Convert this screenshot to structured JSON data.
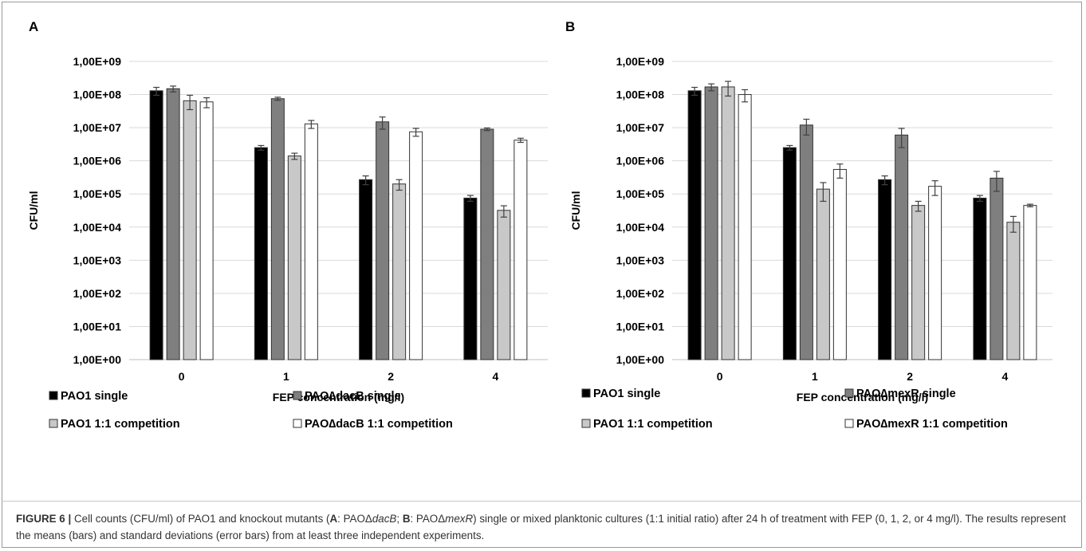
{
  "figure": {
    "caption": {
      "label": "FIGURE 6 |",
      "part1": " Cell counts (CFU/ml) of PAO1 and knockout mutants (",
      "a_letter": "A",
      "a_colon": ": PAO",
      "a_delta": "Δ",
      "a_gene": "dacB",
      "sep": "; ",
      "b_letter": "B",
      "b_colon": ": PAO",
      "b_delta": "Δ",
      "b_gene": "mexR",
      "part2": ") single or mixed planktonic cultures (1:1 initial ratio) after 24 h of treatment with FEP (0, 1, 2, or 4 mg/l). The results represent the means (bars) and standard deviations (error bars) from at least three independent experiments."
    }
  },
  "colors": {
    "series": [
      "#000000",
      "#7f7f7f",
      "#c8c8c8",
      "#ffffff"
    ],
    "stroke": "#333333",
    "grid": "#d9d9d9",
    "errorbar": "#404040"
  },
  "chart_data": [
    {
      "panel_label": "A",
      "type": "bar",
      "yscale": "log",
      "ylim": [
        1,
        1000000000
      ],
      "ylabel": "CFU/ml",
      "xlabel": "FEP concentration (mg/l)",
      "categories": [
        "0",
        "1",
        "2",
        "4"
      ],
      "yticks": [
        "1,00E+00",
        "1,00E+01",
        "1,00E+02",
        "1,00E+03",
        "1,00E+04",
        "1,00E+05",
        "1,00E+06",
        "1,00E+07",
        "1,00E+08",
        "1,00E+09"
      ],
      "grid": true,
      "legend_position": "bottom",
      "series": [
        {
          "name": "PAO1 single",
          "values": [
            130000000,
            2500000,
            270000,
            75000
          ],
          "errors": [
            35000000,
            400000,
            80000,
            15000
          ]
        },
        {
          "name": "PAO∆dacB single",
          "values": [
            150000000,
            75000000,
            15000000,
            9000000
          ],
          "errors": [
            30000000,
            8000000,
            6000000,
            800000
          ]
        },
        {
          "name": "PAO1 1:1 competition",
          "values": [
            65000000,
            1400000,
            200000,
            32000
          ],
          "errors": [
            30000000,
            300000,
            70000,
            12000
          ]
        },
        {
          "name": "PAO∆dacB 1:1 competition",
          "values": [
            60000000,
            13000000,
            7500000,
            4200000
          ],
          "errors": [
            20000000,
            3500000,
            2000000,
            600000
          ]
        }
      ]
    },
    {
      "panel_label": "B",
      "type": "bar",
      "yscale": "log",
      "ylim": [
        1,
        1000000000
      ],
      "ylabel": "CFU/ml",
      "xlabel": "FEP concentration (mg/l)",
      "categories": [
        "0",
        "1",
        "2",
        "4"
      ],
      "yticks": [
        "1,00E+00",
        "1,00E+01",
        "1,00E+02",
        "1,00E+03",
        "1,00E+04",
        "1,00E+05",
        "1,00E+06",
        "1,00E+07",
        "1,00E+08",
        "1,00E+09"
      ],
      "grid": true,
      "legend_position": "bottom",
      "series": [
        {
          "name": "PAO1 single",
          "values": [
            130000000,
            2500000,
            270000,
            75000
          ],
          "errors": [
            35000000,
            400000,
            80000,
            15000
          ]
        },
        {
          "name": "PAO∆mexR single",
          "values": [
            170000000,
            12000000,
            6000000,
            300000
          ],
          "errors": [
            40000000,
            6000000,
            3500000,
            180000
          ]
        },
        {
          "name": "PAO1 1:1 competition",
          "values": [
            170000000,
            140000,
            45000,
            14000
          ],
          "errors": [
            80000000,
            80000,
            15000,
            7000
          ]
        },
        {
          "name": "PAO∆mexR 1:1 competition",
          "values": [
            100000000,
            550000,
            170000,
            45000
          ],
          "errors": [
            40000000,
            250000,
            80000,
            4000
          ]
        }
      ]
    }
  ]
}
